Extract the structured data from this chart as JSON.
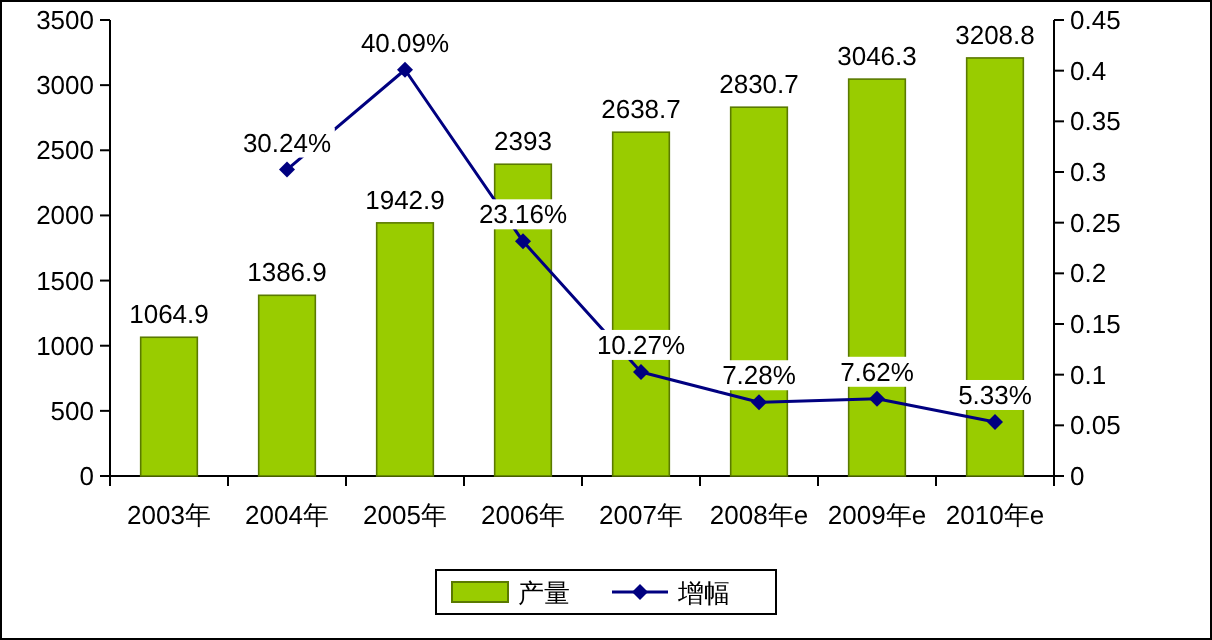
{
  "chart_data": {
    "type": "bar",
    "categories": [
      "2003年",
      "2004年",
      "2005年",
      "2006年",
      "2007年",
      "2008年e",
      "2009年e",
      "2010年e"
    ],
    "series": [
      {
        "name": "产量",
        "color": "#99cc00",
        "values": [
          1064.9,
          1386.9,
          1942.9,
          2393,
          2638.7,
          2830.7,
          3046.3,
          3208.8
        ],
        "value_labels": [
          "1064.9",
          "1386.9",
          "1942.9",
          "2393",
          "2638.7",
          "2830.7",
          "3046.3",
          "3208.8"
        ]
      },
      {
        "name": "增幅",
        "type": "line",
        "axis": "y2",
        "color": "#000080",
        "values": [
          null,
          0.3024,
          0.4009,
          0.2316,
          0.1027,
          0.0728,
          0.0762,
          0.0533
        ],
        "value_labels": [
          null,
          "30.24%",
          "40.09%",
          "23.16%",
          "10.27%",
          "7.28%",
          "7.62%",
          "5.33%"
        ]
      }
    ],
    "ylim": [
      0,
      3500
    ],
    "yticks": [
      0,
      500,
      1000,
      1500,
      2000,
      2500,
      3000,
      3500
    ],
    "y2lim": [
      0,
      0.45
    ],
    "y2ticks": [
      0,
      0.05,
      0.1,
      0.15,
      0.2,
      0.25,
      0.3,
      0.35,
      0.4,
      0.45
    ],
    "marker": "diamond",
    "legend": "bottom",
    "grid": false
  }
}
